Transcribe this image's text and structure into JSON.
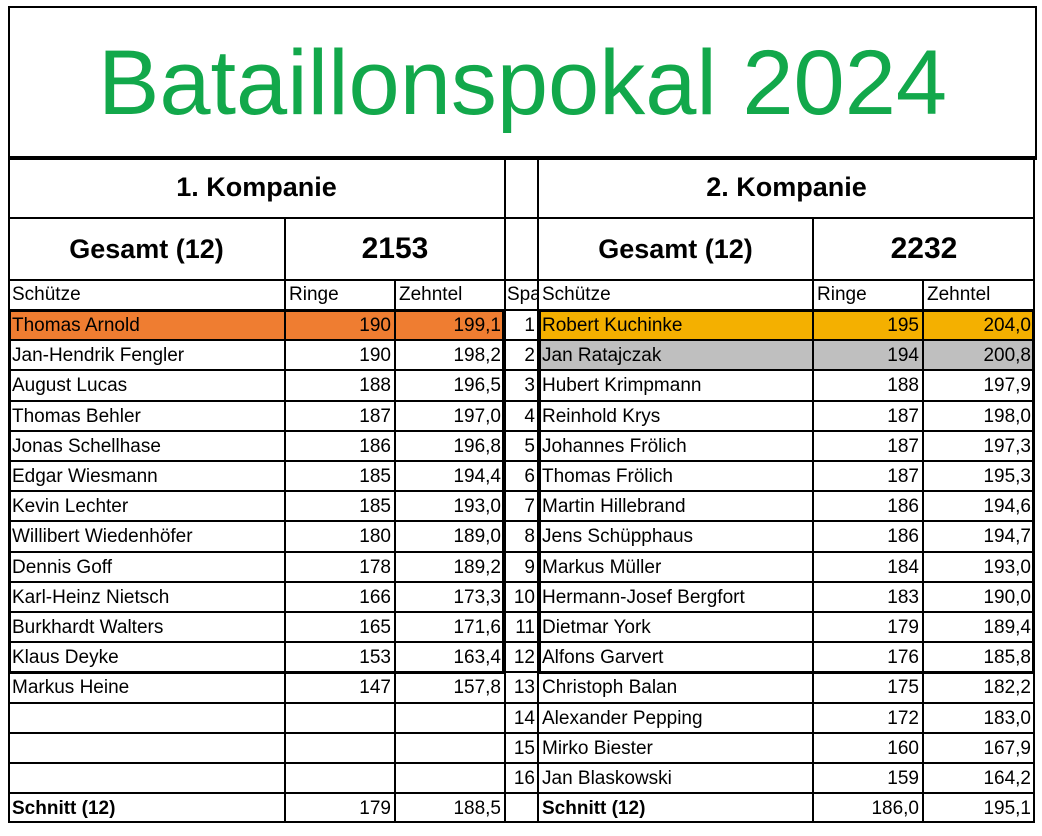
{
  "title": "Bataillonspokal 2024",
  "colors": {
    "title": "#12a84b",
    "first": "#f4b000",
    "left_first": "#ef7d31",
    "second": "#bfbfbf"
  },
  "left": {
    "company": "1. Kompanie",
    "total_label": "Gesamt (12)",
    "total": "2153",
    "columns": [
      "Schütze",
      "Ringe",
      "Zehntel"
    ],
    "rows": [
      [
        "Thomas Arnold",
        "190",
        "199,1"
      ],
      [
        "Jan-Hendrik Fengler",
        "190",
        "198,2"
      ],
      [
        "August Lucas",
        "188",
        "196,5"
      ],
      [
        "Thomas Behler",
        "187",
        "197,0"
      ],
      [
        "Jonas Schellhase",
        "186",
        "196,8"
      ],
      [
        "Edgar Wiesmann",
        "185",
        "194,4"
      ],
      [
        "Kevin Lechter",
        "185",
        "193,0"
      ],
      [
        "Willibert Wiedenhöfer",
        "180",
        "189,0"
      ],
      [
        "Dennis Goff",
        "178",
        "189,2"
      ],
      [
        "Karl-Heinz Nietsch",
        "166",
        "173,3"
      ],
      [
        "Burkhardt Walters",
        "165",
        "171,6"
      ],
      [
        "Klaus Deyke",
        "153",
        "163,4"
      ],
      [
        "Markus Heine",
        "147",
        "157,8"
      ],
      [
        "",
        "",
        ""
      ],
      [
        "",
        "",
        ""
      ],
      [
        "",
        "",
        ""
      ]
    ],
    "avg_label": "Schnitt (12)",
    "avg_ringe": "179",
    "avg_zehntel": "188,5"
  },
  "mid": {
    "header": "Spa",
    "numbers": [
      "1",
      "2",
      "3",
      "4",
      "5",
      "6",
      "7",
      "8",
      "9",
      "10",
      "11",
      "12",
      "13",
      "14",
      "15",
      "16"
    ]
  },
  "right": {
    "company": "2. Kompanie",
    "total_label": "Gesamt (12)",
    "total": "2232",
    "columns": [
      "Schütze",
      "Ringe",
      "Zehntel"
    ],
    "rows": [
      [
        "Robert Kuchinke",
        "195",
        "204,0"
      ],
      [
        "Jan Ratajczak",
        "194",
        "200,8"
      ],
      [
        "Hubert Krimpmann",
        "188",
        "197,9"
      ],
      [
        "Reinhold Krys",
        "187",
        "198,0"
      ],
      [
        "Johannes Frölich",
        "187",
        "197,3"
      ],
      [
        "Thomas Frölich",
        "187",
        "195,3"
      ],
      [
        "Martin Hillebrand",
        "186",
        "194,6"
      ],
      [
        "Jens Schüpphaus",
        "186",
        "194,7"
      ],
      [
        "Markus Müller",
        "184",
        "193,0"
      ],
      [
        "Hermann-Josef Bergfort",
        "183",
        "190,0"
      ],
      [
        "Dietmar York",
        "179",
        "189,4"
      ],
      [
        "Alfons Garvert",
        "176",
        "185,8"
      ],
      [
        "Christoph Balan",
        "175",
        "182,2"
      ],
      [
        "Alexander Pepping",
        "172",
        "183,0"
      ],
      [
        "Mirko Biester",
        "160",
        "167,9"
      ],
      [
        "Jan Blaskowski",
        "159",
        "164,2"
      ]
    ],
    "avg_label": "Schnitt (12)",
    "avg_ringe": "186,0",
    "avg_zehntel": "195,1"
  }
}
